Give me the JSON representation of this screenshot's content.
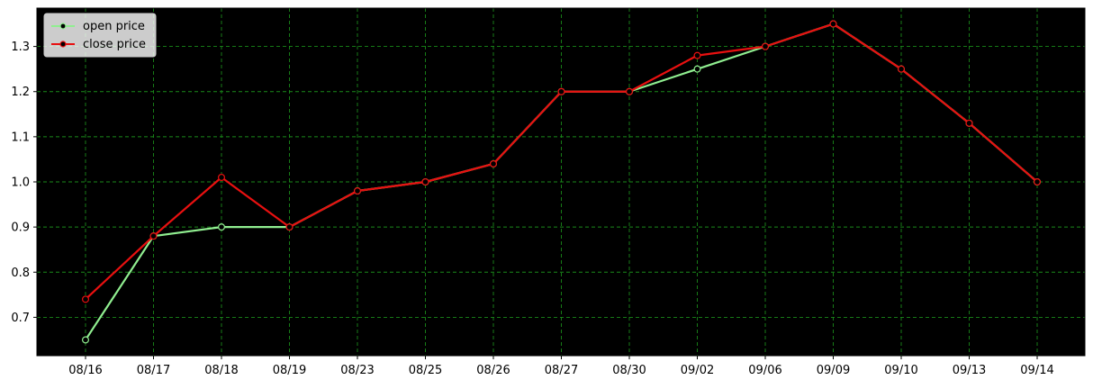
{
  "chart_data": {
    "type": "line",
    "title": "",
    "xlabel": "",
    "ylabel": "",
    "categories": [
      "08/16",
      "08/17",
      "08/18",
      "08/19",
      "08/23",
      "08/25",
      "08/26",
      "08/27",
      "08/30",
      "09/02",
      "09/06",
      "09/09",
      "09/10",
      "09/13",
      "09/14"
    ],
    "ylim": [
      0.615,
      1.385
    ],
    "yticks": [
      "0.7",
      "0.8",
      "0.9",
      "1.0",
      "1.1",
      "1.2",
      "1.3"
    ],
    "grid": true,
    "legend_position": "top-left",
    "background": "#000000",
    "grid_color": "#1a8a1a",
    "series": [
      {
        "name": "open price",
        "color": "#90ee90",
        "values": [
          0.65,
          0.88,
          0.9,
          0.9,
          0.98,
          1.0,
          1.04,
          1.2,
          1.2,
          1.25,
          1.3,
          1.35,
          1.25,
          1.13,
          1.0
        ]
      },
      {
        "name": "close price",
        "color": "#e81010",
        "values": [
          0.74,
          0.88,
          1.01,
          0.9,
          0.98,
          1.0,
          1.04,
          1.2,
          1.2,
          1.28,
          1.3,
          1.35,
          1.25,
          1.13,
          1.0
        ]
      }
    ]
  }
}
